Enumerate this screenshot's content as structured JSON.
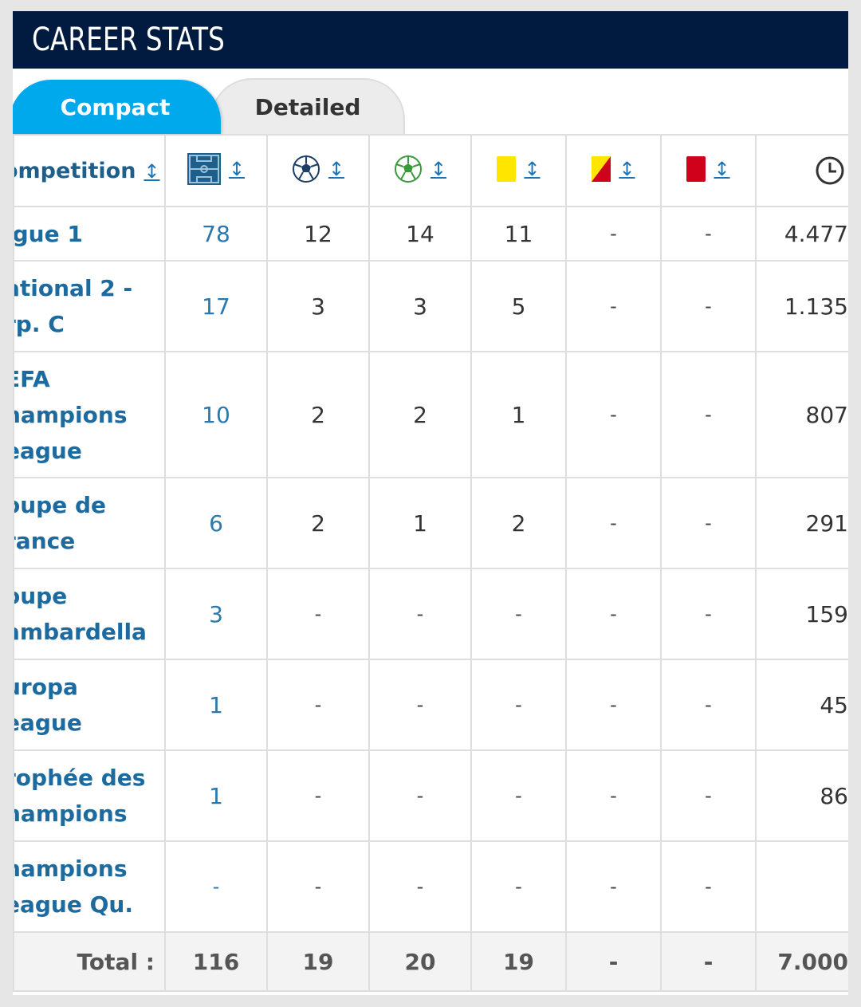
{
  "header": {
    "title": "CAREER STATS"
  },
  "tabs": [
    {
      "label": "Compact",
      "active": true
    },
    {
      "label": "Detailed",
      "active": false
    }
  ],
  "table": {
    "columns": [
      {
        "label": "ompetition",
        "icon": "sort-icon"
      },
      {
        "icon": "pitch-appearances-icon"
      },
      {
        "icon": "ball-goals-icon"
      },
      {
        "icon": "green-ball-assists-icon"
      },
      {
        "icon": "yellow-card-icon"
      },
      {
        "icon": "yellow-red-card-icon"
      },
      {
        "icon": "red-card-icon"
      },
      {
        "icon": "clock-minutes-icon"
      }
    ],
    "rows": [
      {
        "competition": "igue 1",
        "apps": "78",
        "goals": "12",
        "assists": "14",
        "yellow": "11",
        "yellow_red": "-",
        "red": "-",
        "minutes": "4.477"
      },
      {
        "competition": "ational 2 -\nrp. C",
        "apps": "17",
        "goals": "3",
        "assists": "3",
        "yellow": "5",
        "yellow_red": "-",
        "red": "-",
        "minutes": "1.135"
      },
      {
        "competition": "EFA\nhampions\neague",
        "apps": "10",
        "goals": "2",
        "assists": "2",
        "yellow": "1",
        "yellow_red": "-",
        "red": "-",
        "minutes": "807"
      },
      {
        "competition": "oupe de\nrance",
        "apps": "6",
        "goals": "2",
        "assists": "1",
        "yellow": "2",
        "yellow_red": "-",
        "red": "-",
        "minutes": "291"
      },
      {
        "competition": "oupe\nambardella",
        "apps": "3",
        "goals": "-",
        "assists": "-",
        "yellow": "-",
        "yellow_red": "-",
        "red": "-",
        "minutes": "159"
      },
      {
        "competition": "uropa\neague",
        "apps": "1",
        "goals": "-",
        "assists": "-",
        "yellow": "-",
        "yellow_red": "-",
        "red": "-",
        "minutes": "45"
      },
      {
        "competition": "rophée des\nhampions",
        "apps": "1",
        "goals": "-",
        "assists": "-",
        "yellow": "-",
        "yellow_red": "-",
        "red": "-",
        "minutes": "86"
      },
      {
        "competition": "hampions\neague Qu.",
        "apps": "-",
        "goals": "-",
        "assists": "-",
        "yellow": "-",
        "yellow_red": "-",
        "red": "-",
        "minutes": ""
      }
    ],
    "total": {
      "label": "Total :",
      "apps": "116",
      "goals": "19",
      "assists": "20",
      "yellow": "19",
      "yellow_red": "-",
      "red": "-",
      "minutes": "7.000"
    }
  },
  "colors": {
    "header_bg": "#001b3f",
    "accent": "#00a8ec",
    "link": "#1d6a9e",
    "yellow_card": "#ffe500",
    "red_card": "#d0021b"
  }
}
